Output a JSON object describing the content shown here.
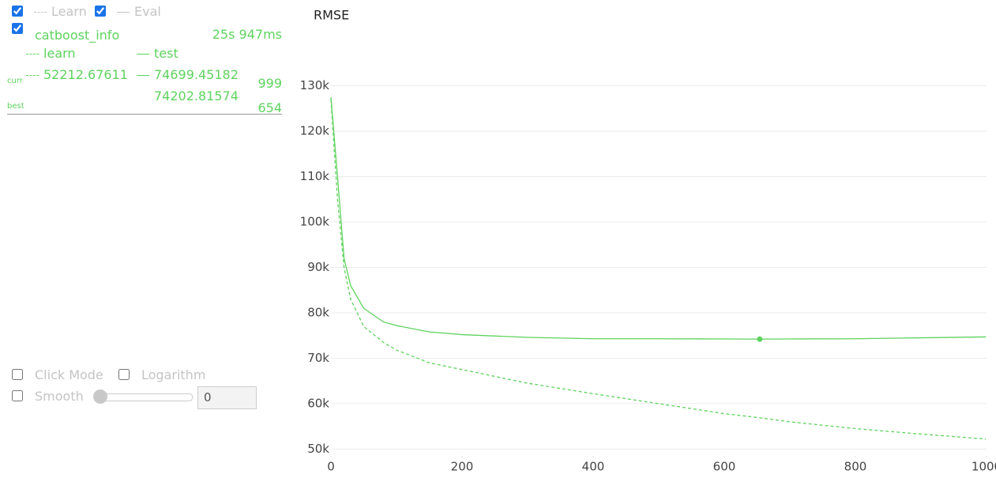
{
  "legend": {
    "learn": "Learn",
    "eval": "Eval"
  },
  "panel": {
    "run_name": "catboost_info",
    "elapsed": "25s 947ms",
    "curr_label": "curr",
    "best_label": "best"
  },
  "controls": {
    "click_mode": "Click Mode",
    "logarithm": "Logarithm",
    "smooth": "Smooth",
    "smooth_value": "0"
  },
  "chart_data": {
    "type": "line",
    "title": "RMSE",
    "x": [
      0,
      10,
      20,
      30,
      50,
      80,
      100,
      150,
      200,
      300,
      400,
      500,
      600,
      654,
      700,
      800,
      900,
      999
    ],
    "series": [
      {
        "name": "learn",
        "color": "#5ed35e",
        "dashed": true,
        "values": [
          127000,
          105000,
          90000,
          83000,
          77000,
          73500,
          71800,
          69000,
          67500,
          64500,
          62200,
          60000,
          57800,
          56900,
          56000,
          54500,
          53300,
          52212.67611
        ]
      },
      {
        "name": "test",
        "color": "#5ed35e",
        "dashed": false,
        "values": [
          127500,
          110000,
          92000,
          86000,
          81000,
          78000,
          77200,
          75800,
          75200,
          74600,
          74300,
          74300,
          74250,
          74202.81574,
          74250,
          74300,
          74500,
          74699.45182
        ]
      }
    ],
    "best_point": {
      "x": 654,
      "y": 74202.81574
    },
    "xlim": [
      0,
      1000
    ],
    "xticks": [
      0,
      200,
      400,
      600,
      800,
      {
        "value": 1000,
        "label": "1000"
      }
    ],
    "ylim": [
      48500,
      131500
    ],
    "yticks": [
      {
        "value": 50000,
        "label": "50k"
      },
      {
        "value": 60000,
        "label": "60k"
      },
      {
        "value": 70000,
        "label": "70k"
      },
      {
        "value": 80000,
        "label": "80k"
      },
      {
        "value": 90000,
        "label": "90k"
      },
      {
        "value": 100000,
        "label": "100k"
      },
      {
        "value": 110000,
        "label": "110k"
      },
      {
        "value": 120000,
        "label": "120k"
      },
      {
        "value": 130000,
        "label": "130k"
      }
    ],
    "grid": true
  }
}
